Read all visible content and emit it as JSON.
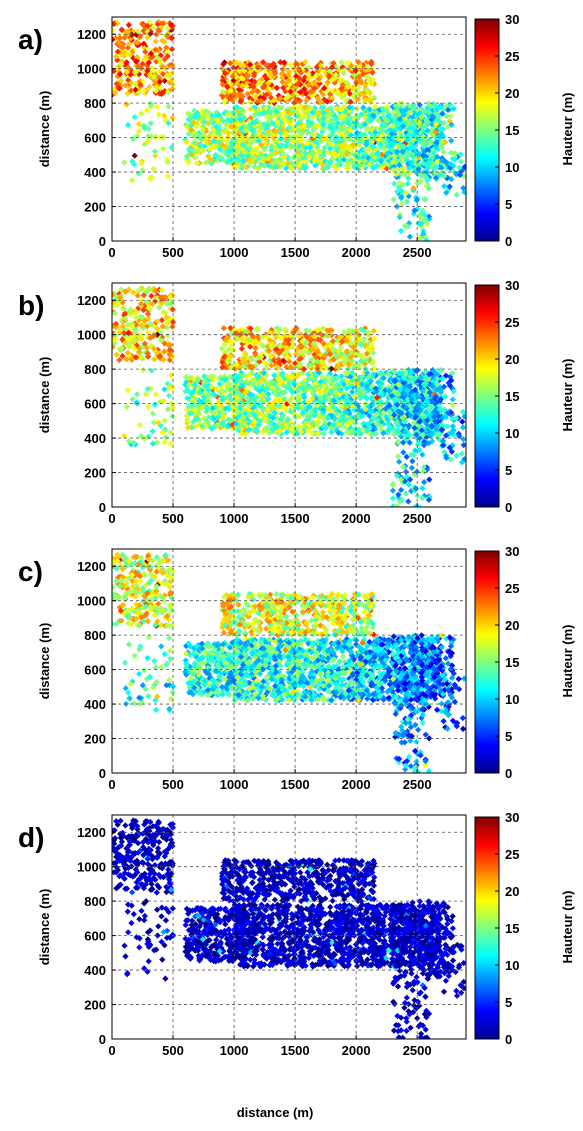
{
  "shared": {
    "xlabel": "distance (m)"
  },
  "chart_data": [
    {
      "type": "scatter",
      "panel_label": "a)",
      "xlabel": "",
      "ylabel": "distance (m)",
      "xlim": [
        0,
        2900
      ],
      "ylim": [
        0,
        1300
      ],
      "xticks": [
        0,
        500,
        1000,
        1500,
        2000,
        2500
      ],
      "yticks": [
        0,
        200,
        400,
        600,
        800,
        1000,
        1200
      ],
      "grid": true,
      "colorbar": {
        "label": "Hauteur (m)",
        "min": 0,
        "max": 30,
        "ticks": [
          0,
          5,
          10,
          15,
          20,
          25,
          30
        ],
        "colormap": "jet"
      },
      "height_profile": {
        "base": 16,
        "upper_block_bonus": 6,
        "east_decline": 5,
        "noise": 5
      }
    },
    {
      "type": "scatter",
      "panel_label": "b)",
      "xlabel": "",
      "ylabel": "distance (m)",
      "xlim": [
        0,
        2900
      ],
      "ylim": [
        0,
        1300
      ],
      "xticks": [
        0,
        500,
        1000,
        1500,
        2000,
        2500
      ],
      "yticks": [
        0,
        200,
        400,
        600,
        800,
        1000,
        1200
      ],
      "grid": true,
      "colorbar": {
        "label": "Hauteur (m)",
        "min": 0,
        "max": 30,
        "ticks": [
          0,
          5,
          10,
          15,
          20,
          25,
          30
        ],
        "colormap": "jet"
      },
      "height_profile": {
        "base": 15,
        "upper_block_bonus": 5,
        "east_decline": 6,
        "noise": 5
      }
    },
    {
      "type": "scatter",
      "panel_label": "c)",
      "xlabel": "",
      "ylabel": "distance (m)",
      "xlim": [
        0,
        2900
      ],
      "ylim": [
        0,
        1300
      ],
      "xticks": [
        0,
        500,
        1000,
        1500,
        2000,
        2500
      ],
      "yticks": [
        0,
        200,
        400,
        600,
        800,
        1000,
        1200
      ],
      "grid": true,
      "colorbar": {
        "label": "Hauteur (m)",
        "min": 0,
        "max": 30,
        "ticks": [
          0,
          5,
          10,
          15,
          20,
          25,
          30
        ],
        "colormap": "jet"
      },
      "height_profile": {
        "base": 12,
        "upper_block_bonus": 6,
        "east_decline": 6,
        "noise": 5
      }
    },
    {
      "type": "scatter",
      "panel_label": "d)",
      "xlabel": "",
      "ylabel": "distance (m)",
      "xlim": [
        0,
        2900
      ],
      "ylim": [
        0,
        1300
      ],
      "xticks": [
        0,
        500,
        1000,
        1500,
        2000,
        2500
      ],
      "yticks": [
        0,
        200,
        400,
        600,
        800,
        1000,
        1200
      ],
      "grid": true,
      "colorbar": {
        "label": "Hauteur (m)",
        "min": 0,
        "max": 30,
        "ticks": [
          0,
          5,
          10,
          15,
          20,
          25,
          30
        ],
        "colormap": "jet"
      },
      "height_profile": {
        "base": 2,
        "upper_block_bonus": 0,
        "east_decline": 0,
        "noise": 2
      }
    }
  ],
  "point_clusters": [
    {
      "x": [
        1000,
        2700
      ],
      "y": [
        420,
        780
      ],
      "count": 1300,
      "upper": false
    },
    {
      "x": [
        900,
        2150
      ],
      "y": [
        800,
        1040
      ],
      "count": 500,
      "upper": true
    },
    {
      "x": [
        0,
        500
      ],
      "y": [
        850,
        1270
      ],
      "count": 260,
      "upper": true
    },
    {
      "x": [
        600,
        1100
      ],
      "y": [
        450,
        760
      ],
      "count": 300,
      "upper": false
    },
    {
      "x": [
        2300,
        2800
      ],
      "y": [
        350,
        800
      ],
      "count": 220,
      "upper": false
    },
    {
      "x": [
        2300,
        2600
      ],
      "y": [
        0,
        350
      ],
      "count": 60,
      "upper": false
    },
    {
      "x": [
        100,
        500
      ],
      "y": [
        350,
        800
      ],
      "count": 50,
      "upper": false
    },
    {
      "x": [
        2700,
        2900
      ],
      "y": [
        250,
        560
      ],
      "count": 30,
      "upper": false
    }
  ]
}
